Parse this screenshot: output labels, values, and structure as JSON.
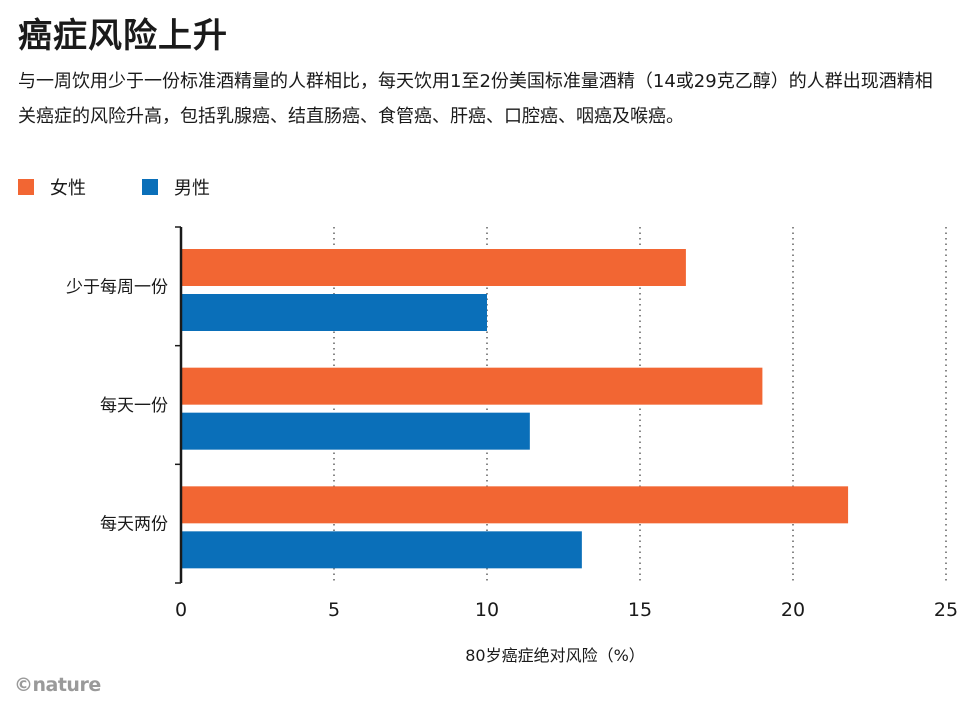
{
  "title": "癌症风险上升",
  "subtitle": "与一周饮用少于一份标准酒精量的人群相比，每天饮用1至2份美国标准量酒精（14或29克乙醇）的人群出现酒精相关癌症的风险升高，包括乳腺癌、结直肠癌、食管癌、肝癌、口腔癌、咽癌及喉癌。",
  "logo": "©nature",
  "colors": {
    "female": "#f26633",
    "male": "#0a6fb9"
  },
  "chart_data": {
    "type": "bar",
    "orientation": "horizontal",
    "categories": [
      "少于每周一份",
      "每天一份",
      "每天两份"
    ],
    "series": [
      {
        "name": "女性",
        "values": [
          16.5,
          19,
          21.8
        ]
      },
      {
        "name": "男性",
        "values": [
          10,
          11.4,
          13.1
        ]
      }
    ],
    "xlabel": "80岁癌症绝对风险（%）",
    "xlim": [
      0,
      25
    ],
    "xticks": [
      0,
      5,
      10,
      15,
      20,
      25
    ],
    "grid": "vertical dotted",
    "legend_position": "top-left"
  }
}
